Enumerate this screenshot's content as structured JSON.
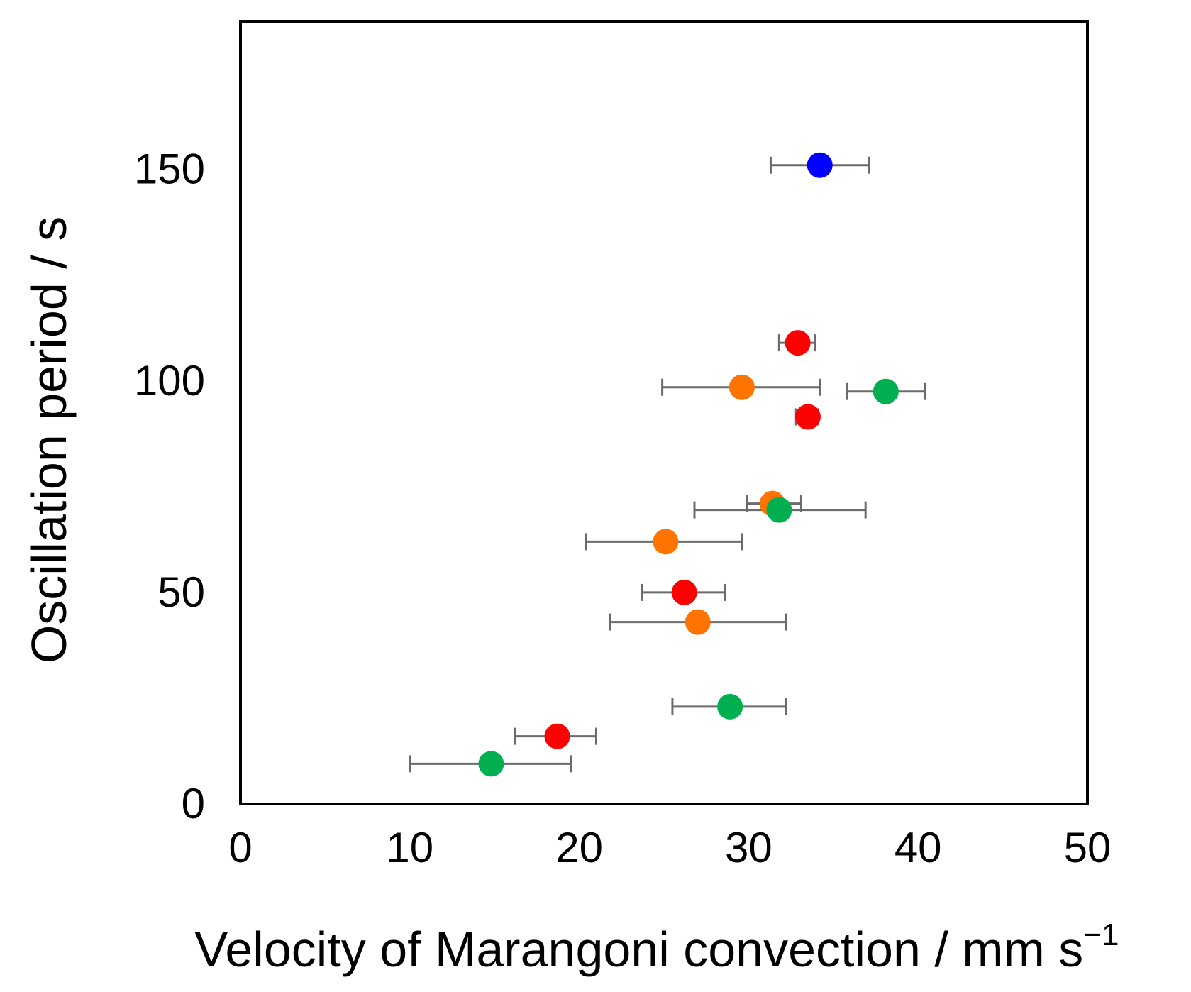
{
  "chart_data": {
    "type": "scatter",
    "title": "",
    "xlabel": "Velocity of Marangoni convection / mm s",
    "xlabel_superscript": "−1",
    "ylabel": "Oscillation period / s",
    "xlim": [
      0,
      50
    ],
    "ylim": [
      0,
      185
    ],
    "x_ticks": [
      0,
      10,
      20,
      30,
      40,
      50
    ],
    "x_tick_labels": [
      "0",
      "10",
      "20",
      "30",
      "40",
      "50"
    ],
    "y_ticks": [
      0,
      50,
      100,
      150
    ],
    "y_tick_labels": [
      "0",
      "50",
      "100",
      "150"
    ],
    "grid": false,
    "legend": "none",
    "error_bar_color": "#6b6b6b",
    "series": [
      {
        "name": "blue",
        "color": "#0000ff",
        "points": [
          {
            "x": 34.2,
            "y": 151,
            "xerr_low": 31.3,
            "xerr_high": 37.1
          }
        ]
      },
      {
        "name": "red",
        "color": "#ff0000",
        "points": [
          {
            "x": 32.9,
            "y": 109,
            "xerr_low": 31.8,
            "xerr_high": 33.9
          },
          {
            "x": 33.5,
            "y": 91.5,
            "xerr_low": 32.8,
            "xerr_high": 34.1
          },
          {
            "x": 26.2,
            "y": 50,
            "xerr_low": 23.7,
            "xerr_high": 28.6
          },
          {
            "x": 18.7,
            "y": 16,
            "xerr_low": 16.2,
            "xerr_high": 21.0
          }
        ]
      },
      {
        "name": "orange",
        "color": "#ff7300",
        "points": [
          {
            "x": 29.6,
            "y": 98.5,
            "xerr_low": 24.9,
            "xerr_high": 34.2
          },
          {
            "x": 31.4,
            "y": 71,
            "xerr_low": 29.9,
            "xerr_high": 33.1
          },
          {
            "x": 25.1,
            "y": 62,
            "xerr_low": 20.4,
            "xerr_high": 29.6
          },
          {
            "x": 27.0,
            "y": 43,
            "xerr_low": 21.8,
            "xerr_high": 32.2
          }
        ]
      },
      {
        "name": "green",
        "color": "#00b050",
        "points": [
          {
            "x": 38.1,
            "y": 97.5,
            "xerr_low": 35.8,
            "xerr_high": 40.4
          },
          {
            "x": 31.8,
            "y": 69.5,
            "xerr_low": 26.8,
            "xerr_high": 36.9
          },
          {
            "x": 28.9,
            "y": 23,
            "xerr_low": 25.5,
            "xerr_high": 32.2
          },
          {
            "x": 14.8,
            "y": 9.5,
            "xerr_low": 10.0,
            "xerr_high": 19.5
          }
        ]
      }
    ]
  }
}
